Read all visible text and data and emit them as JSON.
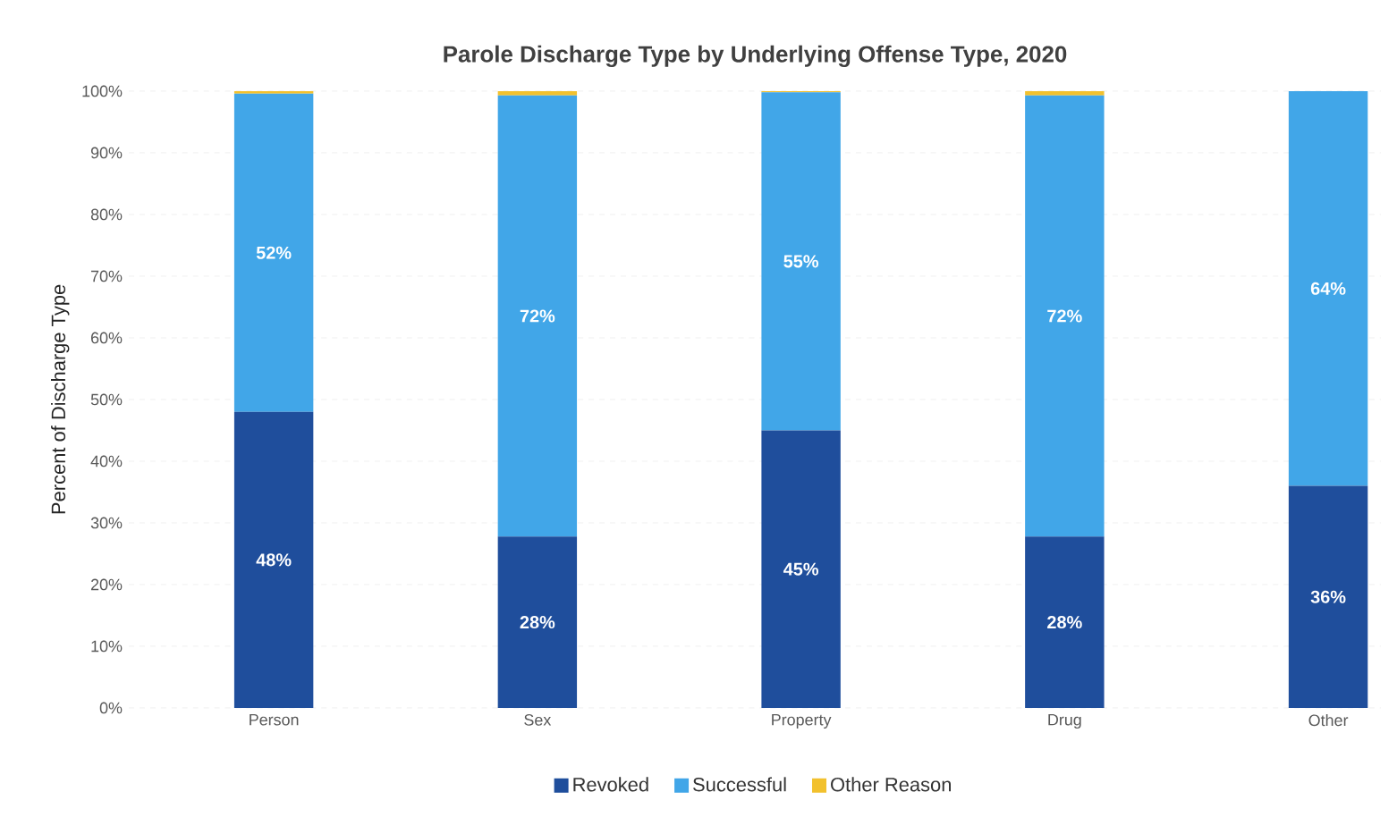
{
  "chart_data": {
    "type": "bar",
    "stacked": true,
    "title": "Parole Discharge Type by Underlying Offense Type, 2020",
    "ylabel": "Percent of Discharge Type",
    "categories": [
      "Person",
      "Sex",
      "Property",
      "Drug",
      "Other"
    ],
    "ylim": [
      0,
      100
    ],
    "yticks": [
      {
        "value": 0,
        "label": "0%"
      },
      {
        "value": 10,
        "label": "10%"
      },
      {
        "value": 20,
        "label": "20%"
      },
      {
        "value": 30,
        "label": "30%"
      },
      {
        "value": 40,
        "label": "40%"
      },
      {
        "value": 50,
        "label": "50%"
      },
      {
        "value": 60,
        "label": "60%"
      },
      {
        "value": 70,
        "label": "70%"
      },
      {
        "value": 80,
        "label": "80%"
      },
      {
        "value": 90,
        "label": "90%"
      },
      {
        "value": 100,
        "label": "100%"
      }
    ],
    "grid": "y",
    "legend": "bottom",
    "series": [
      {
        "name": "Revoked",
        "color": "#1f4e9c",
        "values": [
          48,
          27.8,
          45,
          27.8,
          36
        ],
        "value_labels": [
          "48%",
          "28%",
          "45%",
          "28%",
          "36%"
        ]
      },
      {
        "name": "Successful",
        "color": "#41a6e8",
        "values": [
          51.6,
          71.5,
          54.8,
          71.5,
          64
        ],
        "value_labels": [
          "52%",
          "72%",
          "55%",
          "72%",
          "64%"
        ]
      },
      {
        "name": "Other Reason",
        "color": "#f2c12e",
        "values": [
          0.4,
          0.7,
          0.2,
          0.7,
          0
        ],
        "value_labels": [
          null,
          null,
          null,
          null,
          null
        ]
      }
    ]
  }
}
